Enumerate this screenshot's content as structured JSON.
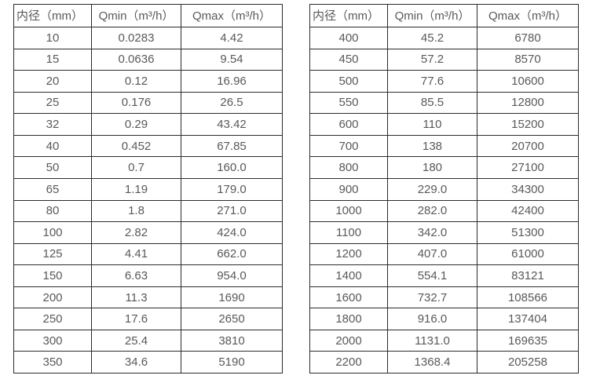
{
  "colors": {
    "background": "#ffffff",
    "border": "#2b2b2b",
    "text": "#595959"
  },
  "chart_data": [
    {
      "type": "table",
      "title": "",
      "headers": [
        "内径（mm）",
        "Qmin（m³/h）",
        "Qmax（m³/h）"
      ],
      "rows": [
        [
          "10",
          "0.0283",
          "4.42"
        ],
        [
          "15",
          "0.0636",
          "9.54"
        ],
        [
          "20",
          "0.12",
          "16.96"
        ],
        [
          "25",
          "0.176",
          "26.5"
        ],
        [
          "32",
          "0.29",
          "43.42"
        ],
        [
          "40",
          "0.452",
          "67.85"
        ],
        [
          "50",
          "0.7",
          "160.0"
        ],
        [
          "65",
          "1.19",
          "179.0"
        ],
        [
          "80",
          "1.8",
          "271.0"
        ],
        [
          "100",
          "2.82",
          "424.0"
        ],
        [
          "125",
          "4.41",
          "662.0"
        ],
        [
          "150",
          "6.63",
          "954.0"
        ],
        [
          "200",
          "11.3",
          "1690"
        ],
        [
          "250",
          "17.6",
          "2650"
        ],
        [
          "300",
          "25.4",
          "3810"
        ],
        [
          "350",
          "34.6",
          "5190"
        ]
      ]
    },
    {
      "type": "table",
      "title": "",
      "headers": [
        "内径（mm）",
        "Qmin（m³/h）",
        "Qmax（m³/h）"
      ],
      "rows": [
        [
          "400",
          "45.2",
          "6780"
        ],
        [
          "450",
          "57.2",
          "8570"
        ],
        [
          "500",
          "77.6",
          "10600"
        ],
        [
          "550",
          "85.5",
          "12800"
        ],
        [
          "600",
          "110",
          "15200"
        ],
        [
          "700",
          "138",
          "20700"
        ],
        [
          "800",
          "180",
          "27100"
        ],
        [
          "900",
          "229.0",
          "34300"
        ],
        [
          "1000",
          "282.0",
          "42400"
        ],
        [
          "1100",
          "342.0",
          "51300"
        ],
        [
          "1200",
          "407.0",
          "61000"
        ],
        [
          "1400",
          "554.1",
          "83121"
        ],
        [
          "1600",
          "732.7",
          "108566"
        ],
        [
          "1800",
          "916.0",
          "137404"
        ],
        [
          "2000",
          "1131.0",
          "169635"
        ],
        [
          "2200",
          "1368.4",
          "205258"
        ]
      ]
    }
  ]
}
